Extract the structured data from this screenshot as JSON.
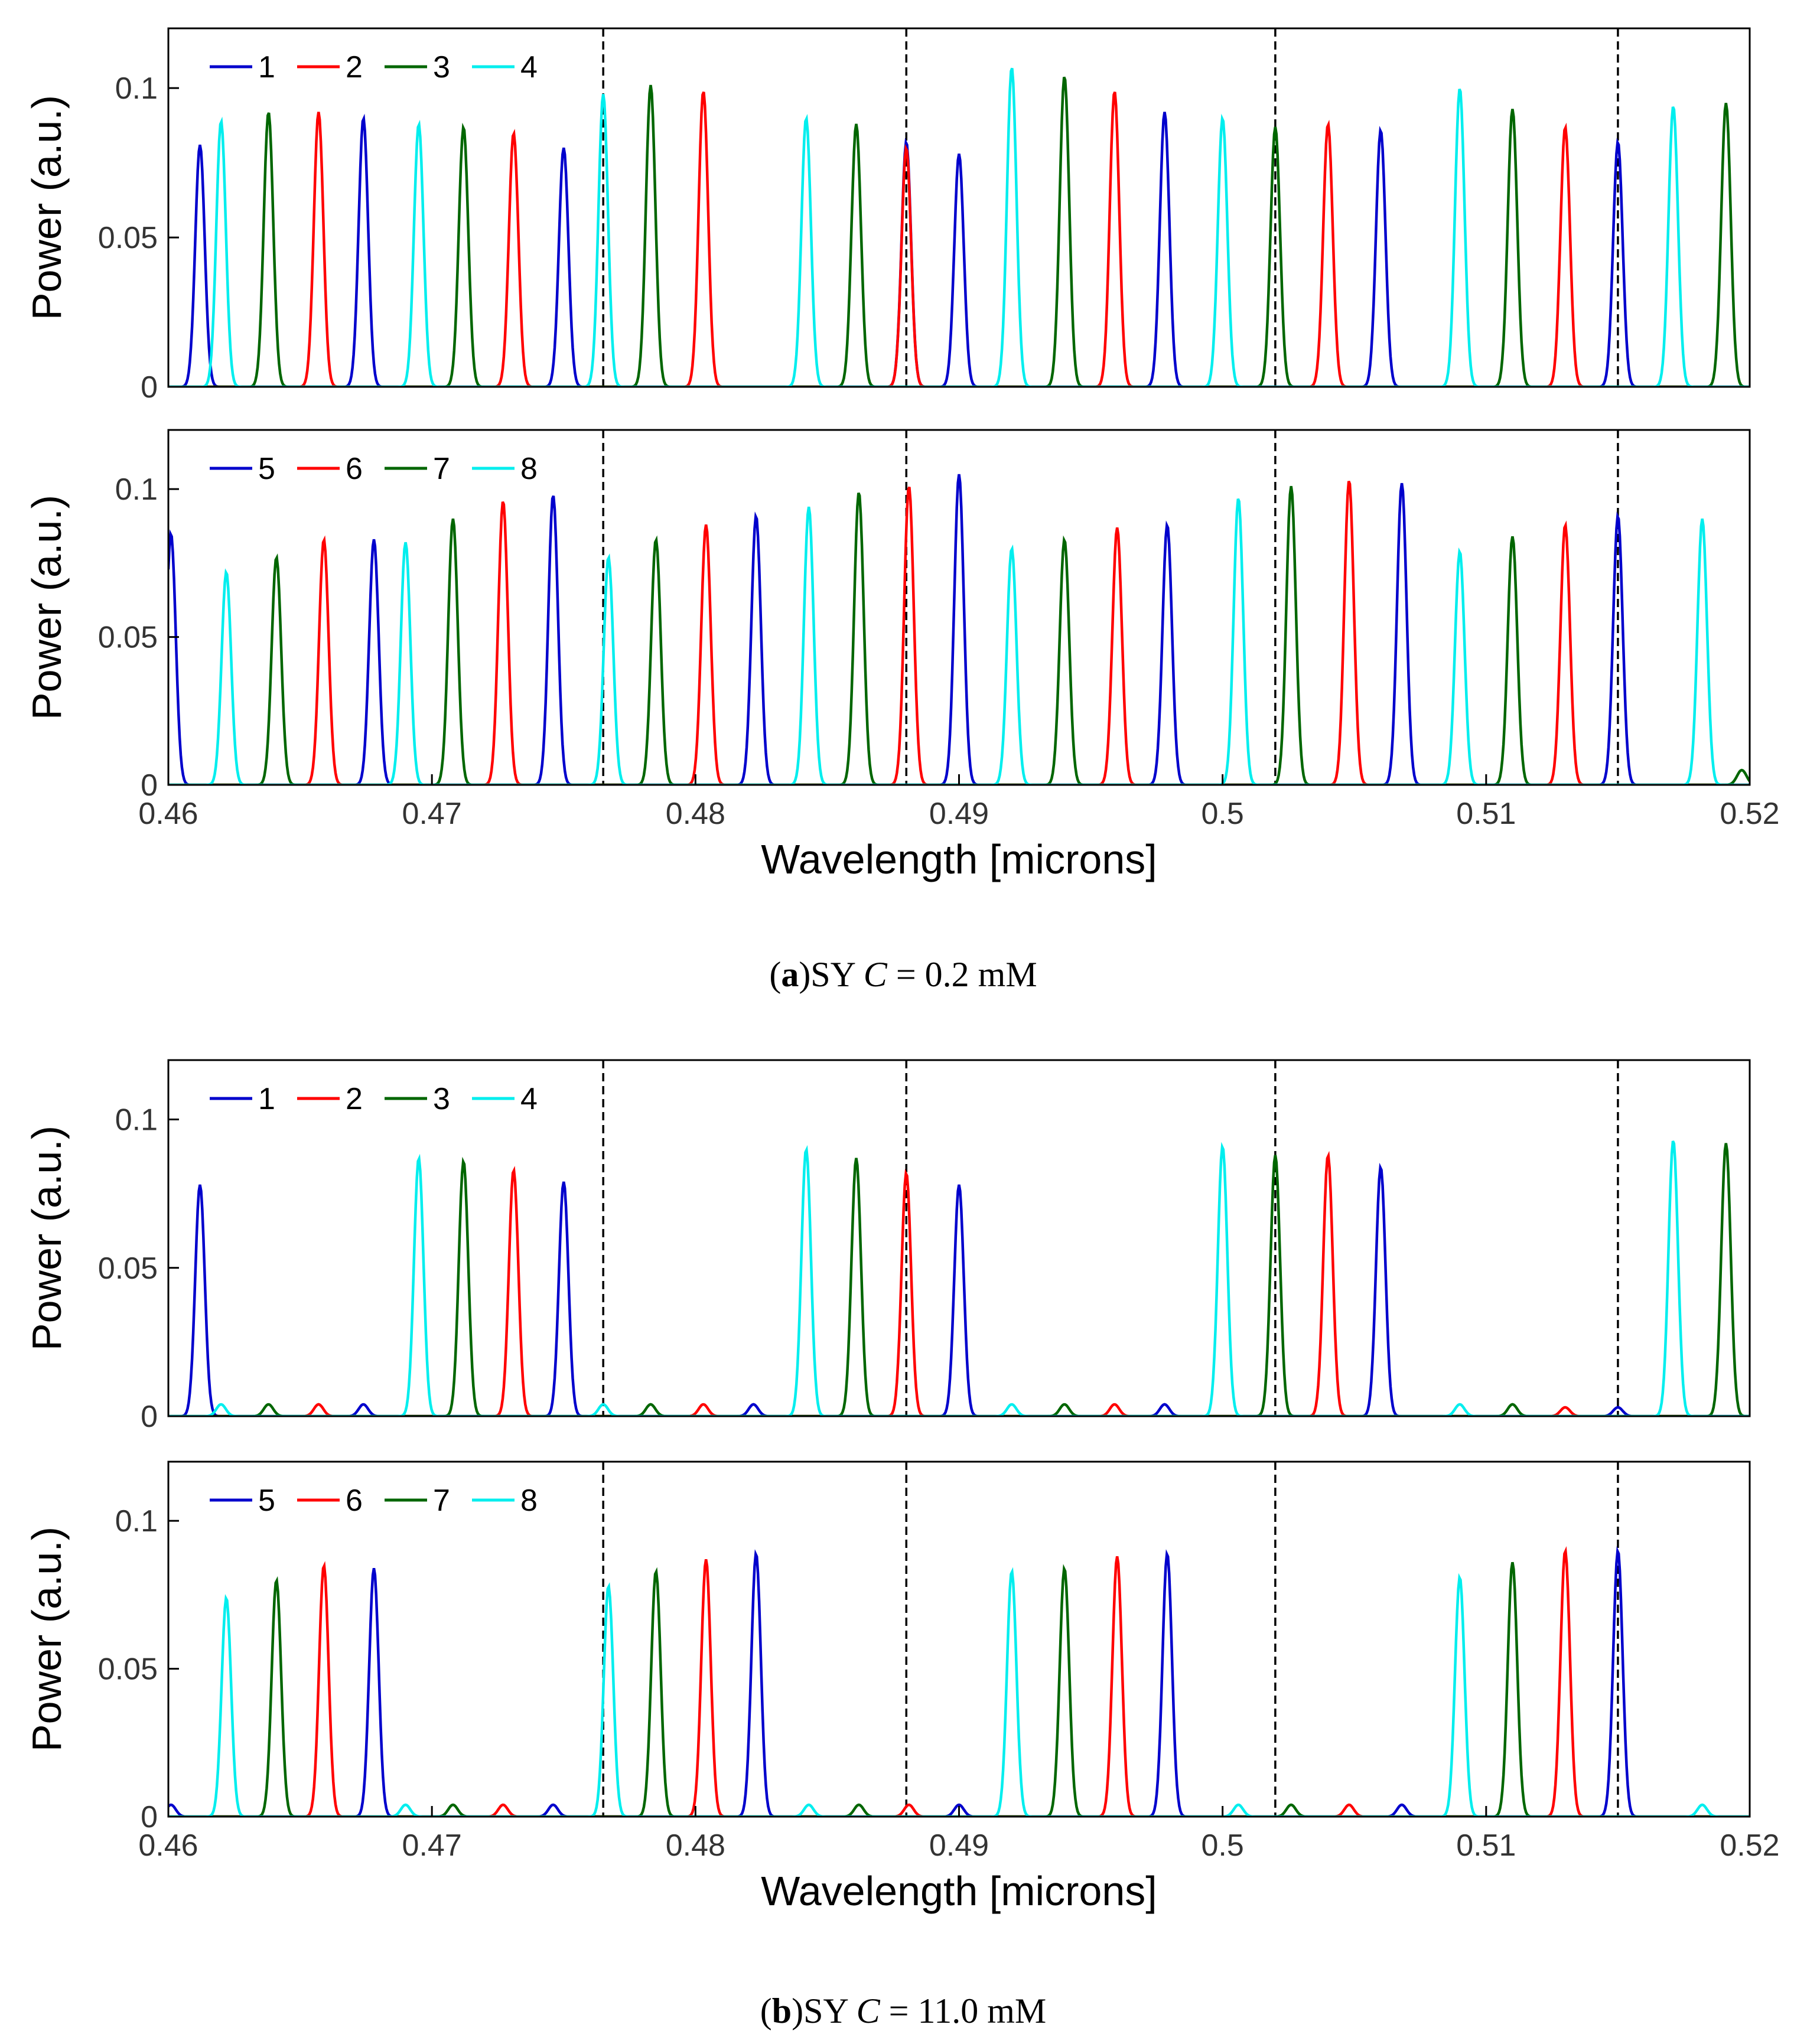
{
  "figure": {
    "captions": [
      {
        "open": "(",
        "letter": "a",
        "close": ")",
        "text": "SY ",
        "var": "C",
        "rest": " = 0.2 mM"
      },
      {
        "open": "(",
        "letter": "b",
        "close": ")",
        "text": "SY ",
        "var": "C",
        "rest": " = 11.0 mM"
      }
    ]
  },
  "chart_data": [
    {
      "type": "line",
      "panel": "a-top",
      "ylabel": "Power (a.u.)",
      "xlabel": "",
      "xlim": [
        0.46,
        0.52
      ],
      "ylim": [
        0,
        0.12
      ],
      "yticks": [
        0,
        0.05,
        0.1
      ],
      "ytick_labels": [
        "0",
        "0.05",
        "0.1"
      ],
      "xticks": [],
      "xtick_labels": [],
      "dashed_lines_x": [
        0.4765,
        0.488,
        0.502,
        0.515
      ],
      "grid": false,
      "legend_position": "top-left",
      "series": [
        {
          "name": "1",
          "color": "#0000cc",
          "peaks": [
            [
              0.4612,
              0.081
            ],
            [
              0.4674,
              0.09
            ],
            [
              0.475,
              0.08
            ],
            [
              0.488,
              0.082
            ],
            [
              0.49,
              0.078
            ],
            [
              0.4978,
              0.092
            ],
            [
              0.506,
              0.086
            ],
            [
              0.515,
              0.082
            ]
          ]
        },
        {
          "name": "2",
          "color": "#ff0000",
          "peaks": [
            [
              0.4657,
              0.092
            ],
            [
              0.4731,
              0.085
            ],
            [
              0.4803,
              0.099
            ],
            [
              0.488,
              0.08
            ],
            [
              0.4959,
              0.099
            ],
            [
              0.504,
              0.088
            ],
            [
              0.513,
              0.087
            ]
          ]
        },
        {
          "name": "3",
          "color": "#006600",
          "peaks": [
            [
              0.4638,
              0.092
            ],
            [
              0.4712,
              0.087
            ],
            [
              0.4783,
              0.101
            ],
            [
              0.4861,
              0.088
            ],
            [
              0.494,
              0.104
            ],
            [
              0.502,
              0.087
            ],
            [
              0.511,
              0.093
            ],
            [
              0.5191,
              0.095
            ]
          ]
        },
        {
          "name": "4",
          "color": "#00eeee",
          "peaks": [
            [
              0.462,
              0.089
            ],
            [
              0.4695,
              0.088
            ],
            [
              0.4765,
              0.098
            ],
            [
              0.4842,
              0.09
            ],
            [
              0.492,
              0.107
            ],
            [
              0.5,
              0.09
            ],
            [
              0.509,
              0.1
            ],
            [
              0.5171,
              0.094
            ]
          ]
        }
      ]
    },
    {
      "type": "line",
      "panel": "a-bottom",
      "ylabel": "Power (a.u.)",
      "xlabel": "Wavelength [microns]",
      "xlim": [
        0.46,
        0.52
      ],
      "ylim": [
        0,
        0.12
      ],
      "yticks": [
        0,
        0.05,
        0.1
      ],
      "ytick_labels": [
        "0",
        "0.05",
        "0.1"
      ],
      "xticks": [
        0.46,
        0.47,
        0.48,
        0.49,
        0.5,
        0.51,
        0.52
      ],
      "xtick_labels": [
        "0.46",
        "0.47",
        "0.48",
        "0.49",
        "0.5",
        "0.51",
        "0.52"
      ],
      "dashed_lines_x": [
        0.4765,
        0.488,
        0.502,
        0.515
      ],
      "grid": false,
      "legend_position": "top-left",
      "series": [
        {
          "name": "5",
          "color": "#0000cc",
          "peaks": [
            [
              0.4601,
              0.085
            ],
            [
              0.4678,
              0.083
            ],
            [
              0.4746,
              0.098
            ],
            [
              0.4823,
              0.091
            ],
            [
              0.49,
              0.105
            ],
            [
              0.4979,
              0.088
            ],
            [
              0.5068,
              0.102
            ],
            [
              0.515,
              0.091
            ]
          ]
        },
        {
          "name": "6",
          "color": "#ff0000",
          "peaks": [
            [
              0.4659,
              0.083
            ],
            [
              0.4727,
              0.096
            ],
            [
              0.4804,
              0.088
            ],
            [
              0.4881,
              0.101
            ],
            [
              0.496,
              0.087
            ],
            [
              0.5048,
              0.103
            ],
            [
              0.513,
              0.088
            ]
          ]
        },
        {
          "name": "7",
          "color": "#006600",
          "peaks": [
            [
              0.4641,
              0.077
            ],
            [
              0.4708,
              0.09
            ],
            [
              0.4785,
              0.083
            ],
            [
              0.4862,
              0.099
            ],
            [
              0.494,
              0.083
            ],
            [
              0.5026,
              0.101
            ],
            [
              0.511,
              0.084
            ],
            [
              0.5197,
              0.005
            ]
          ]
        },
        {
          "name": "8",
          "color": "#00eeee",
          "peaks": [
            [
              0.4622,
              0.072
            ],
            [
              0.469,
              0.082
            ],
            [
              0.4767,
              0.077
            ],
            [
              0.4843,
              0.094
            ],
            [
              0.492,
              0.08
            ],
            [
              0.5006,
              0.097
            ],
            [
              0.509,
              0.079
            ],
            [
              0.5182,
              0.09
            ]
          ]
        }
      ]
    },
    {
      "type": "line",
      "panel": "b-top",
      "ylabel": "Power (a.u.)",
      "xlabel": "",
      "xlim": [
        0.46,
        0.52
      ],
      "ylim": [
        0,
        0.12
      ],
      "yticks": [
        0,
        0.05,
        0.1
      ],
      "ytick_labels": [
        "0",
        "0.05",
        "0.1"
      ],
      "xticks": [],
      "xtick_labels": [],
      "dashed_lines_x": [
        0.4765,
        0.488,
        0.502,
        0.515
      ],
      "grid": false,
      "legend_position": "top-left",
      "series": [
        {
          "name": "1",
          "color": "#0000cc",
          "peaks": [
            [
              0.4612,
              0.078
            ],
            [
              0.4674,
              0.004
            ],
            [
              0.475,
              0.079
            ],
            [
              0.4822,
              0.004
            ],
            [
              0.49,
              0.078
            ],
            [
              0.4978,
              0.004
            ],
            [
              0.506,
              0.084
            ],
            [
              0.515,
              0.003
            ]
          ]
        },
        {
          "name": "2",
          "color": "#ff0000",
          "peaks": [
            [
              0.4657,
              0.004
            ],
            [
              0.4731,
              0.083
            ],
            [
              0.4803,
              0.004
            ],
            [
              0.488,
              0.082
            ],
            [
              0.4959,
              0.004
            ],
            [
              0.504,
              0.088
            ],
            [
              0.513,
              0.003
            ]
          ]
        },
        {
          "name": "3",
          "color": "#006600",
          "peaks": [
            [
              0.4638,
              0.004
            ],
            [
              0.4712,
              0.086
            ],
            [
              0.4783,
              0.004
            ],
            [
              0.4861,
              0.087
            ],
            [
              0.494,
              0.004
            ],
            [
              0.502,
              0.088
            ],
            [
              0.511,
              0.004
            ],
            [
              0.5191,
              0.092
            ]
          ]
        },
        {
          "name": "4",
          "color": "#00eeee",
          "peaks": [
            [
              0.462,
              0.004
            ],
            [
              0.4695,
              0.087
            ],
            [
              0.4765,
              0.004
            ],
            [
              0.4842,
              0.09
            ],
            [
              0.492,
              0.004
            ],
            [
              0.5,
              0.091
            ],
            [
              0.509,
              0.004
            ],
            [
              0.5171,
              0.093
            ]
          ]
        }
      ]
    },
    {
      "type": "line",
      "panel": "b-bottom",
      "ylabel": "Power (a.u.)",
      "xlabel": "Wavelength [microns]",
      "xlim": [
        0.46,
        0.52
      ],
      "ylim": [
        0,
        0.12
      ],
      "yticks": [
        0,
        0.05,
        0.1
      ],
      "ytick_labels": [
        "0",
        "0.05",
        "0.1"
      ],
      "xticks": [
        0.46,
        0.47,
        0.48,
        0.49,
        0.5,
        0.51,
        0.52
      ],
      "xtick_labels": [
        "0.46",
        "0.47",
        "0.48",
        "0.49",
        "0.5",
        "0.51",
        "0.52"
      ],
      "dashed_lines_x": [
        0.4765,
        0.488,
        0.502,
        0.515
      ],
      "grid": false,
      "legend_position": "top-left",
      "series": [
        {
          "name": "5",
          "color": "#0000cc",
          "peaks": [
            [
              0.4601,
              0.004
            ],
            [
              0.4678,
              0.084
            ],
            [
              0.4746,
              0.004
            ],
            [
              0.4823,
              0.089
            ],
            [
              0.49,
              0.004
            ],
            [
              0.4979,
              0.089
            ],
            [
              0.5068,
              0.004
            ],
            [
              0.515,
              0.09
            ]
          ]
        },
        {
          "name": "6",
          "color": "#ff0000",
          "peaks": [
            [
              0.4659,
              0.085
            ],
            [
              0.4727,
              0.004
            ],
            [
              0.4804,
              0.087
            ],
            [
              0.4881,
              0.004
            ],
            [
              0.496,
              0.088
            ],
            [
              0.5048,
              0.004
            ],
            [
              0.513,
              0.09
            ]
          ]
        },
        {
          "name": "7",
          "color": "#006600",
          "peaks": [
            [
              0.4641,
              0.08
            ],
            [
              0.4708,
              0.004
            ],
            [
              0.4785,
              0.083
            ],
            [
              0.4862,
              0.004
            ],
            [
              0.494,
              0.084
            ],
            [
              0.5026,
              0.004
            ],
            [
              0.511,
              0.086
            ]
          ]
        },
        {
          "name": "8",
          "color": "#00eeee",
          "peaks": [
            [
              0.4622,
              0.074
            ],
            [
              0.469,
              0.004
            ],
            [
              0.4767,
              0.078
            ],
            [
              0.4843,
              0.004
            ],
            [
              0.492,
              0.083
            ],
            [
              0.5006,
              0.004
            ],
            [
              0.509,
              0.081
            ],
            [
              0.5182,
              0.004
            ]
          ]
        }
      ]
    }
  ]
}
